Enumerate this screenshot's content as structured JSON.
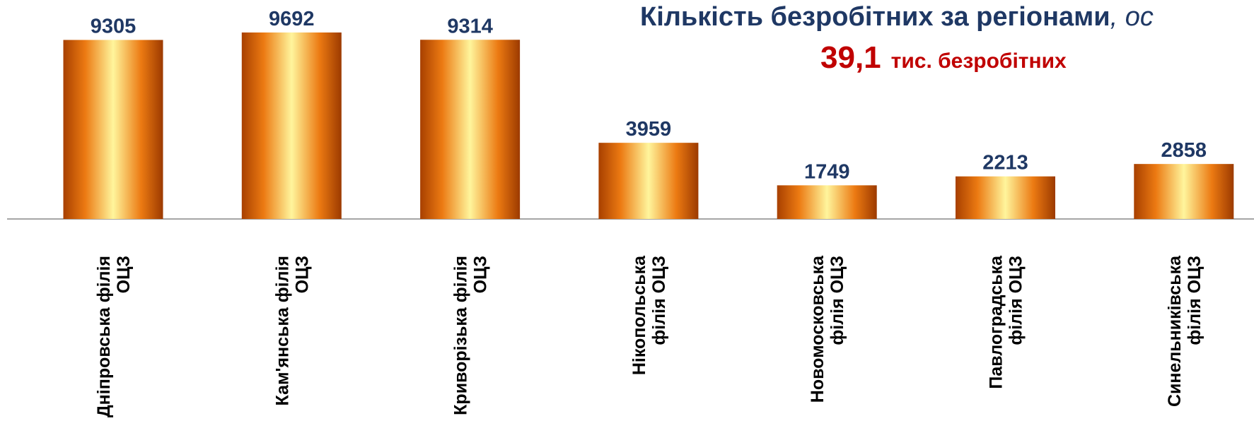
{
  "chart_data": {
    "type": "bar",
    "title": "Кількість безробітних за регіонами",
    "title_suffix": ", ос",
    "subtitle_number": "39,1",
    "subtitle_text": "тис. безробітних",
    "categories": [
      [
        "Дніпровська філія",
        "ОЦЗ"
      ],
      [
        "Кам'янська філія",
        "ОЦЗ"
      ],
      [
        "Криворізька філія",
        "ОЦЗ"
      ],
      [
        "Нікопольська",
        "філія ОЦЗ"
      ],
      [
        "Новомосковська",
        "філія ОЦЗ"
      ],
      [
        "Павлоградська",
        "філія ОЦЗ"
      ],
      [
        "Синельниківська",
        "філія ОЦЗ"
      ]
    ],
    "values": [
      9305,
      9692,
      9314,
      3959,
      1749,
      2213,
      2858
    ]
  }
}
